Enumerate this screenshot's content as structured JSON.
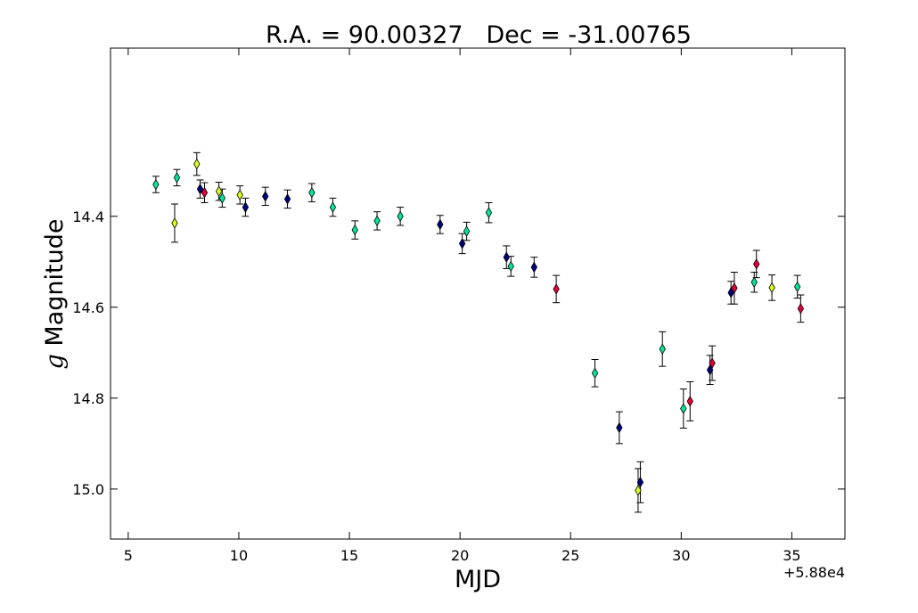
{
  "chart_data": {
    "type": "scatter",
    "title": "R.A. = 90.00327   Dec = -31.00765",
    "xlabel": "MJD",
    "ylabel_symbol": "g",
    "ylabel": "Magnitude",
    "x_offset_label": "+5.88e4",
    "xlim": [
      4.2,
      37.4
    ],
    "ylim": [
      15.11,
      14.03
    ],
    "y_inverted": true,
    "grid": false,
    "marker": "thin_diamond",
    "xticks": [
      5,
      10,
      15,
      20,
      25,
      30,
      35
    ],
    "yticks": [
      14.4,
      14.6,
      14.8,
      15.0
    ],
    "ytick_labels": [
      "14.4",
      "14.6",
      "14.8",
      "15.0"
    ],
    "colors": {
      "navy": "#00007f",
      "teal": "#00e59a",
      "yellow": "#d8ff1e",
      "red": "#e5003a"
    },
    "points": [
      {
        "x": 6.25,
        "y": 14.33,
        "err": 0.018,
        "color": "teal"
      },
      {
        "x": 7.1,
        "y": 14.415,
        "err": 0.042,
        "color": "yellow"
      },
      {
        "x": 7.2,
        "y": 14.315,
        "err": 0.018,
        "color": "teal"
      },
      {
        "x": 8.1,
        "y": 14.285,
        "err": 0.025,
        "color": "yellow"
      },
      {
        "x": 8.25,
        "y": 14.34,
        "err": 0.02,
        "color": "navy"
      },
      {
        "x": 8.45,
        "y": 14.348,
        "err": 0.022,
        "color": "red"
      },
      {
        "x": 9.1,
        "y": 14.345,
        "err": 0.02,
        "color": "yellow"
      },
      {
        "x": 9.25,
        "y": 14.36,
        "err": 0.02,
        "color": "teal"
      },
      {
        "x": 10.05,
        "y": 14.353,
        "err": 0.02,
        "color": "yellow"
      },
      {
        "x": 10.3,
        "y": 14.38,
        "err": 0.02,
        "color": "navy"
      },
      {
        "x": 11.2,
        "y": 14.356,
        "err": 0.02,
        "color": "navy"
      },
      {
        "x": 12.2,
        "y": 14.362,
        "err": 0.02,
        "color": "navy"
      },
      {
        "x": 13.3,
        "y": 14.348,
        "err": 0.02,
        "color": "teal"
      },
      {
        "x": 14.25,
        "y": 14.38,
        "err": 0.02,
        "color": "teal"
      },
      {
        "x": 15.25,
        "y": 14.43,
        "err": 0.02,
        "color": "teal"
      },
      {
        "x": 16.25,
        "y": 14.41,
        "err": 0.02,
        "color": "teal"
      },
      {
        "x": 17.3,
        "y": 14.4,
        "err": 0.02,
        "color": "teal"
      },
      {
        "x": 19.1,
        "y": 14.418,
        "err": 0.02,
        "color": "navy"
      },
      {
        "x": 20.1,
        "y": 14.46,
        "err": 0.022,
        "color": "navy"
      },
      {
        "x": 20.3,
        "y": 14.433,
        "err": 0.02,
        "color": "teal"
      },
      {
        "x": 21.3,
        "y": 14.392,
        "err": 0.022,
        "color": "teal"
      },
      {
        "x": 22.1,
        "y": 14.49,
        "err": 0.025,
        "color": "navy"
      },
      {
        "x": 22.3,
        "y": 14.51,
        "err": 0.022,
        "color": "teal"
      },
      {
        "x": 23.35,
        "y": 14.512,
        "err": 0.022,
        "color": "navy"
      },
      {
        "x": 24.35,
        "y": 14.56,
        "err": 0.03,
        "color": "red"
      },
      {
        "x": 26.1,
        "y": 14.745,
        "err": 0.03,
        "color": "teal"
      },
      {
        "x": 27.2,
        "y": 14.865,
        "err": 0.035,
        "color": "navy"
      },
      {
        "x": 28.05,
        "y": 15.003,
        "err": 0.048,
        "color": "yellow"
      },
      {
        "x": 28.15,
        "y": 14.985,
        "err": 0.045,
        "color": "navy"
      },
      {
        "x": 29.15,
        "y": 14.692,
        "err": 0.038,
        "color": "teal"
      },
      {
        "x": 30.1,
        "y": 14.823,
        "err": 0.043,
        "color": "teal"
      },
      {
        "x": 30.4,
        "y": 14.807,
        "err": 0.043,
        "color": "red"
      },
      {
        "x": 31.3,
        "y": 14.738,
        "err": 0.032,
        "color": "navy"
      },
      {
        "x": 31.4,
        "y": 14.723,
        "err": 0.038,
        "color": "red"
      },
      {
        "x": 32.25,
        "y": 14.568,
        "err": 0.025,
        "color": "navy"
      },
      {
        "x": 32.4,
        "y": 14.558,
        "err": 0.035,
        "color": "red"
      },
      {
        "x": 33.3,
        "y": 14.545,
        "err": 0.022,
        "color": "teal"
      },
      {
        "x": 33.4,
        "y": 14.505,
        "err": 0.03,
        "color": "red"
      },
      {
        "x": 34.1,
        "y": 14.557,
        "err": 0.028,
        "color": "yellow"
      },
      {
        "x": 35.25,
        "y": 14.555,
        "err": 0.025,
        "color": "teal"
      },
      {
        "x": 35.4,
        "y": 14.603,
        "err": 0.03,
        "color": "red"
      }
    ]
  }
}
